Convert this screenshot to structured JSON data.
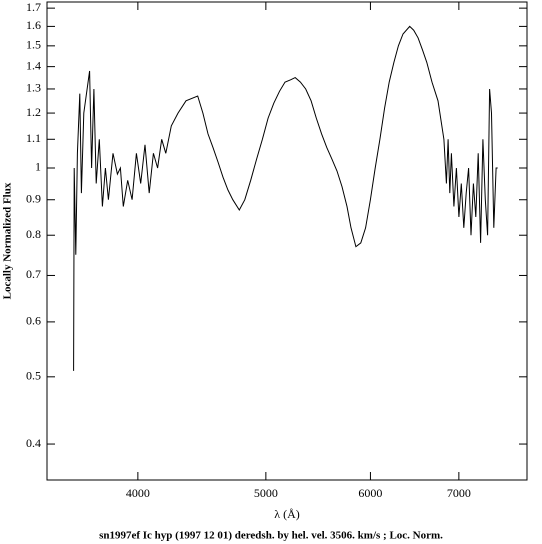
{
  "chart_data": {
    "type": "line",
    "caption": "sn1997ef Ic hyp (1997 12 01) deredsh. by hel. vel.  3506. km/s ;  Loc. Norm.",
    "x_label": "λ (Å)",
    "y_label": "Locally Normalized Flux",
    "xscale": "log",
    "yscale": "log",
    "xlim": [
      3414,
      7883
    ],
    "ylim": [
      0.355,
      1.735
    ],
    "xticks": [
      4000,
      5000,
      6000,
      7000
    ],
    "yticks": [
      0.4,
      0.5,
      0.6,
      0.7,
      0.8,
      0.9,
      1,
      1.1,
      1.2,
      1.3,
      1.4,
      1.5,
      1.6,
      1.7
    ],
    "x": [
      3576,
      3580,
      3590,
      3600,
      3615,
      3625,
      3640,
      3677,
      3690,
      3705,
      3720,
      3740,
      3760,
      3780,
      3800,
      3830,
      3860,
      3880,
      3900,
      3930,
      3960,
      3990,
      4020,
      4050,
      4080,
      4110,
      4140,
      4170,
      4200,
      4240,
      4290,
      4350,
      4440,
      4480,
      4520,
      4560,
      4600,
      4640,
      4680,
      4720,
      4774,
      4820,
      4870,
      4920,
      4970,
      5020,
      5070,
      5120,
      5170,
      5220,
      5262,
      5310,
      5360,
      5410,
      5460,
      5510,
      5560,
      5610,
      5660,
      5710,
      5760,
      5800,
      5850,
      5900,
      5950,
      6000,
      6050,
      6100,
      6150,
      6200,
      6250,
      6300,
      6350,
      6425,
      6470,
      6520,
      6570,
      6620,
      6680,
      6750,
      6820,
      6850,
      6870,
      6890,
      6910,
      6940,
      6970,
      7000,
      7030,
      7060,
      7090,
      7120,
      7150,
      7180,
      7210,
      7240,
      7270,
      7300,
      7330,
      7360,
      7386,
      7410,
      7440,
      7470,
      7490
    ],
    "y": [
      0.51,
      1.0,
      0.75,
      1.05,
      1.28,
      0.92,
      1.2,
      1.38,
      1.0,
      1.3,
      0.95,
      1.1,
      0.88,
      1.0,
      0.9,
      1.05,
      0.98,
      1.0,
      0.88,
      0.96,
      0.9,
      1.05,
      0.95,
      1.08,
      0.92,
      1.05,
      1.0,
      1.1,
      1.05,
      1.15,
      1.2,
      1.25,
      1.27,
      1.2,
      1.12,
      1.07,
      1.02,
      0.97,
      0.93,
      0.9,
      0.87,
      0.9,
      0.96,
      1.03,
      1.1,
      1.18,
      1.24,
      1.29,
      1.33,
      1.34,
      1.35,
      1.33,
      1.3,
      1.25,
      1.18,
      1.12,
      1.07,
      1.03,
      0.99,
      0.94,
      0.88,
      0.82,
      0.77,
      0.78,
      0.82,
      0.9,
      1.0,
      1.1,
      1.22,
      1.33,
      1.42,
      1.5,
      1.56,
      1.6,
      1.58,
      1.54,
      1.48,
      1.42,
      1.33,
      1.25,
      1.1,
      0.95,
      1.1,
      0.92,
      1.05,
      0.88,
      1.0,
      0.85,
      0.95,
      0.82,
      0.92,
      1.0,
      0.8,
      0.95,
      0.85,
      1.05,
      0.78,
      1.1,
      0.9,
      0.8,
      1.3,
      1.2,
      0.82,
      1.0,
      1.0
    ],
    "color": "#000000"
  }
}
